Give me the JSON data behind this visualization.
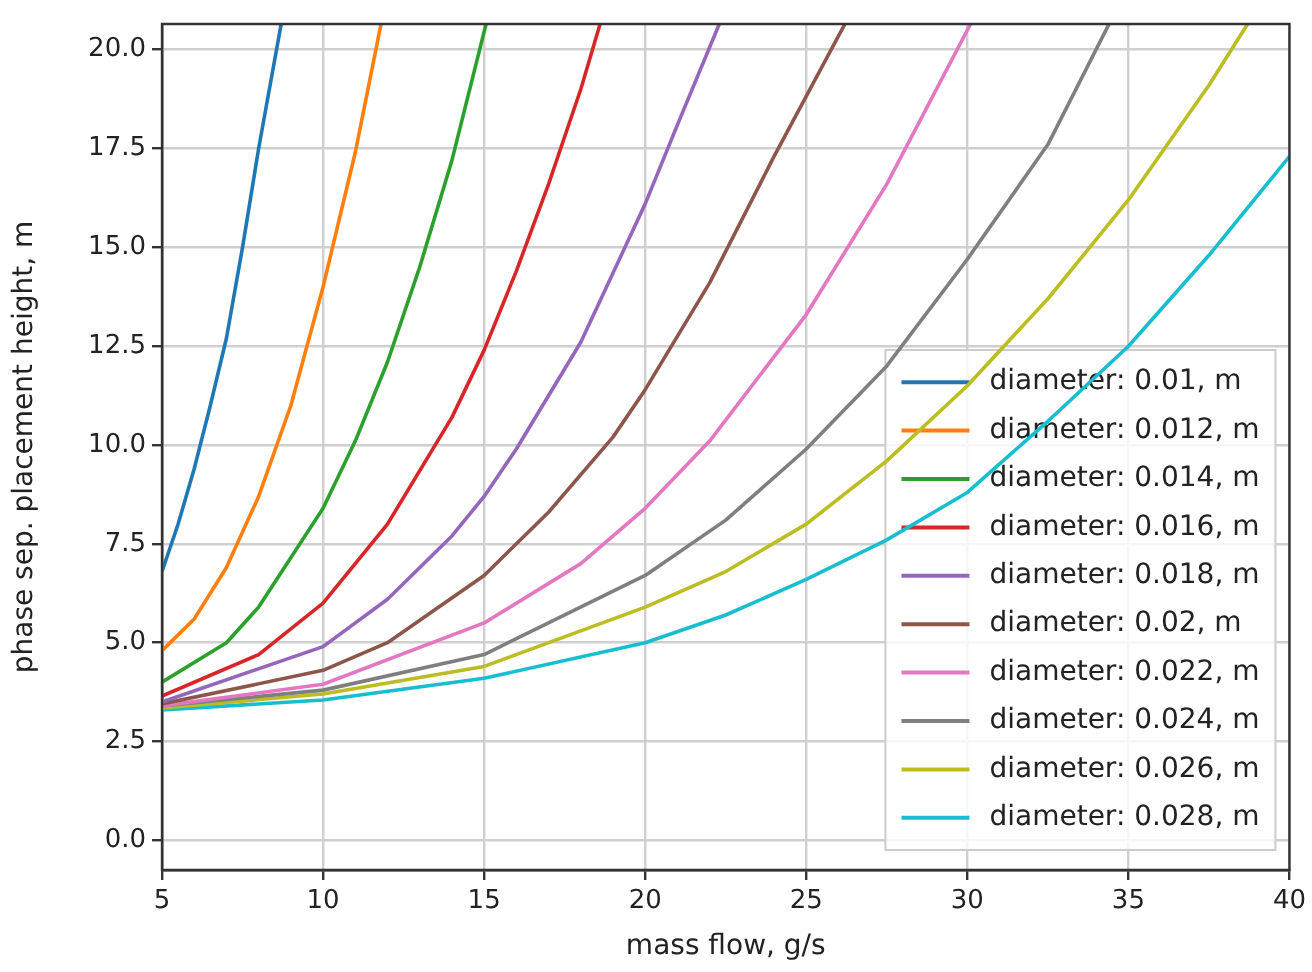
{
  "chart_data": {
    "type": "line",
    "xlabel": "mass flow, g/s",
    "ylabel": "phase sep. placement height, m",
    "xlim": [
      5,
      40
    ],
    "xticks": [
      5,
      10,
      15,
      20,
      25,
      30,
      35,
      40
    ],
    "ylim": [
      -0.75,
      20.65
    ],
    "yticks": [
      {
        "value": 0,
        "label": "0.0"
      },
      {
        "value": 2.5,
        "label": "2.5"
      },
      {
        "value": 5,
        "label": "5.0"
      },
      {
        "value": 7.5,
        "label": "7.5"
      },
      {
        "value": 10,
        "label": "10.0"
      },
      {
        "value": 12.5,
        "label": "12.5"
      },
      {
        "value": 15,
        "label": "15.0"
      },
      {
        "value": 17.5,
        "label": "17.5"
      },
      {
        "value": 20,
        "label": "20.0"
      }
    ],
    "grid": true,
    "legend": "bottom right",
    "marker": "none",
    "line_style": "solid",
    "series": [
      {
        "name": "diameter: 0.01, m",
        "color": "#1f77b4",
        "x": [
          5,
          5.5,
          6,
          6.5,
          7,
          7.5,
          8,
          8.7
        ],
        "values": [
          6.8,
          8.0,
          9.4,
          11.0,
          12.7,
          15.0,
          17.5,
          20.65
        ]
      },
      {
        "name": "diameter: 0.012, m",
        "color": "#ff7f0e",
        "x": [
          5,
          6,
          7,
          8,
          9,
          10,
          11,
          11.8
        ],
        "values": [
          4.8,
          5.6,
          6.9,
          8.7,
          11.0,
          14.0,
          17.4,
          20.65
        ]
      },
      {
        "name": "diameter: 0.014, m",
        "color": "#2ca02c",
        "x": [
          5,
          7,
          8,
          10,
          11,
          12,
          13,
          14,
          15.06
        ],
        "values": [
          4.0,
          5.0,
          5.9,
          8.4,
          10.1,
          12.1,
          14.5,
          17.2,
          20.65
        ]
      },
      {
        "name": "diameter: 0.016, m",
        "color": "#d62728",
        "x": [
          5,
          8,
          10,
          12,
          14,
          15,
          16,
          17,
          18,
          18.6
        ],
        "values": [
          3.65,
          4.7,
          6.0,
          8.0,
          10.7,
          12.4,
          14.4,
          16.6,
          19.0,
          20.65
        ]
      },
      {
        "name": "diameter: 0.018, m",
        "color": "#9467bd",
        "x": [
          5,
          10,
          12,
          14,
          15,
          16,
          18,
          20,
          21,
          22.3
        ],
        "values": [
          3.5,
          4.9,
          6.1,
          7.7,
          8.7,
          9.9,
          12.6,
          16.1,
          18.1,
          20.65
        ]
      },
      {
        "name": "diameter: 0.02, m",
        "color": "#8c564b",
        "x": [
          5,
          10,
          12,
          15,
          17,
          19,
          20,
          22,
          24,
          26.2
        ],
        "values": [
          3.45,
          4.3,
          5.0,
          6.7,
          8.3,
          10.2,
          11.4,
          14.1,
          17.3,
          20.65
        ]
      },
      {
        "name": "diameter: 0.022, m",
        "color": "#e377c2",
        "x": [
          5,
          10,
          15,
          18,
          20,
          22,
          25,
          27.5,
          30.1
        ],
        "values": [
          3.4,
          3.95,
          5.5,
          7.0,
          8.4,
          10.1,
          13.3,
          16.6,
          20.65
        ]
      },
      {
        "name": "diameter: 0.024, m",
        "color": "#7f7f7f",
        "x": [
          5,
          10,
          15,
          20,
          22.5,
          25,
          27.5,
          30,
          32.5,
          34.4
        ],
        "values": [
          3.4,
          3.8,
          4.7,
          6.7,
          8.1,
          9.9,
          12.0,
          14.7,
          17.6,
          20.65
        ]
      },
      {
        "name": "diameter: 0.026, m",
        "color": "#bcbd22",
        "x": [
          5,
          10,
          15,
          20,
          22.5,
          25,
          27.5,
          30,
          32.5,
          35,
          37.5,
          38.7
        ],
        "values": [
          3.35,
          3.7,
          4.4,
          5.9,
          6.8,
          8.0,
          9.6,
          11.5,
          13.7,
          16.2,
          19.1,
          20.65
        ]
      },
      {
        "name": "diameter: 0.028, m",
        "color": "#17becf",
        "x": [
          5,
          10,
          15,
          20,
          22.5,
          25,
          27.5,
          30,
          32.5,
          35,
          37.5,
          40
        ],
        "values": [
          3.3,
          3.55,
          4.1,
          5.0,
          5.7,
          6.6,
          7.6,
          8.8,
          10.6,
          12.5,
          14.8,
          17.3
        ]
      }
    ]
  }
}
